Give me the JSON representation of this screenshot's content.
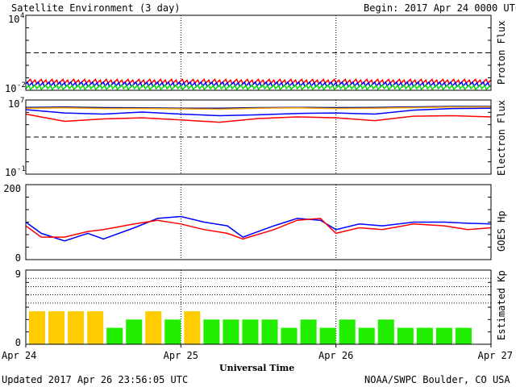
{
  "header": {
    "title": "Satellite Environment (3 day)",
    "begin_label": "Begin:  2017 Apr 24 0000 UTC"
  },
  "footer": {
    "updated": "Updated 2017 Apr 26 23:56:05 UTC",
    "credit": "NOAA/SWPC Boulder, CO USA"
  },
  "xaxis": {
    "title": "Universal Time",
    "ticks": [
      "Apr 24",
      "Apr 25",
      "Apr 26",
      "Apr 27"
    ]
  },
  "chart_data": [
    {
      "type": "line",
      "panel": "proton",
      "ylabel": "Proton Flux",
      "scale": "log",
      "ylim": [
        0.01,
        10000
      ],
      "yticks": [
        "10",
        "10"
      ],
      "ytick_exps": [
        "4",
        "-2"
      ],
      "threshold": 10,
      "x_range_days": [
        0,
        3
      ],
      "series": [
        {
          "color": "#ff0000",
          "values": [
            0.05,
            0.05,
            0.05,
            0.05,
            0.05,
            0.05,
            0.05,
            0.05,
            0.05,
            0.05,
            0.05,
            0.05,
            0.05
          ]
        },
        {
          "color": "#0000ff",
          "values": [
            0.03,
            0.03,
            0.03,
            0.03,
            0.03,
            0.03,
            0.03,
            0.03,
            0.03,
            0.03,
            0.03,
            0.03,
            0.03
          ]
        },
        {
          "color": "#00dd00",
          "values": [
            0.018,
            0.018,
            0.018,
            0.018,
            0.018,
            0.018,
            0.018,
            0.018,
            0.018,
            0.018,
            0.018,
            0.018,
            0.018
          ]
        }
      ]
    },
    {
      "type": "line",
      "panel": "electron",
      "ylabel": "Electron Flux",
      "scale": "log",
      "ylim": [
        0.1,
        10000000
      ],
      "yticks": [
        "10",
        "10"
      ],
      "ytick_exps": [
        "7",
        "-1"
      ],
      "threshold": 1000,
      "x": [
        0,
        0.25,
        0.5,
        0.75,
        1.0,
        1.25,
        1.5,
        1.75,
        2.0,
        2.25,
        2.5,
        2.75,
        3.0
      ],
      "series": [
        {
          "color": "#000080",
          "values": [
            1600000,
            1700000,
            1500000,
            1400000,
            1300000,
            1300000,
            1500000,
            1600000,
            1500000,
            1600000,
            1800000,
            2000000,
            2000000
          ]
        },
        {
          "color": "#ffaa00",
          "values": [
            1300000,
            1400000,
            1200000,
            1200000,
            1100000,
            1000000,
            1300000,
            1400000,
            1200000,
            1300000,
            1500000,
            1700000,
            1800000
          ]
        },
        {
          "color": "#0000ff",
          "values": [
            900000,
            400000,
            300000,
            500000,
            300000,
            200000,
            250000,
            350000,
            400000,
            300000,
            800000,
            1200000,
            1300000
          ]
        },
        {
          "color": "#ff0000",
          "values": [
            300000,
            50000,
            90000,
            120000,
            70000,
            40000,
            100000,
            150000,
            120000,
            60000,
            180000,
            200000,
            150000
          ]
        }
      ]
    },
    {
      "type": "line",
      "panel": "goes_hp",
      "ylabel": "GOES Hp",
      "scale": "linear",
      "ylim": [
        0,
        200
      ],
      "yticks": [
        "200",
        "0"
      ],
      "x": [
        0,
        0.1,
        0.25,
        0.4,
        0.5,
        0.7,
        0.85,
        1.0,
        1.15,
        1.3,
        1.4,
        1.6,
        1.75,
        1.9,
        2.0,
        2.15,
        2.3,
        2.5,
        2.7,
        2.85,
        3.0
      ],
      "series": [
        {
          "color": "#0000ff",
          "values": [
            100,
            70,
            50,
            70,
            55,
            85,
            110,
            115,
            100,
            90,
            60,
            90,
            110,
            105,
            80,
            95,
            90,
            100,
            100,
            97,
            95
          ]
        },
        {
          "color": "#ff0000",
          "values": [
            90,
            60,
            60,
            75,
            80,
            95,
            105,
            95,
            80,
            70,
            55,
            80,
            105,
            110,
            70,
            85,
            80,
            95,
            90,
            80,
            85
          ]
        }
      ]
    },
    {
      "type": "bar",
      "panel": "kp",
      "ylabel": "Estimated Kp",
      "scale": "linear",
      "ylim": [
        0,
        9
      ],
      "yticks": [
        "9",
        "0"
      ],
      "gridlines": [
        5,
        6,
        7,
        8,
        9
      ],
      "values": [
        4,
        4,
        4,
        4,
        2,
        3,
        4,
        3,
        4,
        3,
        3,
        3,
        3,
        2,
        3,
        2,
        3,
        2,
        3,
        2,
        2,
        2,
        2
      ],
      "colors": [
        "#ffcc00",
        "#ffcc00",
        "#ffcc00",
        "#ffcc00",
        "#22ee00",
        "#22ee00",
        "#ffcc00",
        "#22ee00",
        "#ffcc00",
        "#22ee00",
        "#22ee00",
        "#22ee00",
        "#22ee00",
        "#22ee00",
        "#22ee00",
        "#22ee00",
        "#22ee00",
        "#22ee00",
        "#22ee00",
        "#22ee00",
        "#22ee00",
        "#22ee00",
        "#22ee00"
      ]
    }
  ]
}
